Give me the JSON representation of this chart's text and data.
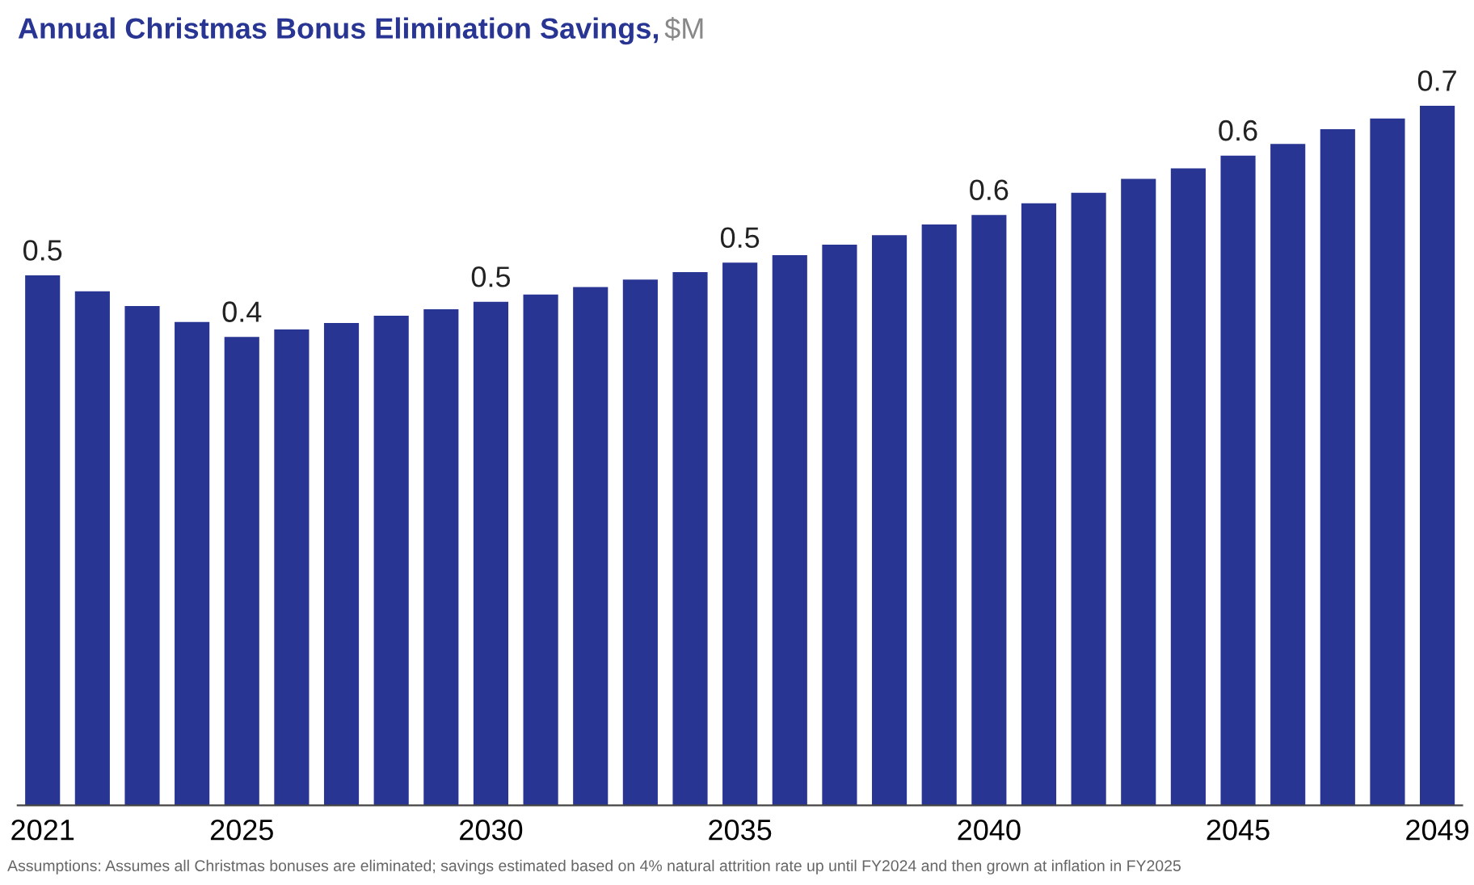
{
  "chart_data": {
    "type": "bar",
    "title": "Annual Christmas Bonus Elimination Savings,",
    "subtitle": "$M",
    "categories": [
      "2021",
      null,
      null,
      null,
      "2025",
      null,
      null,
      null,
      null,
      "2030",
      null,
      null,
      null,
      null,
      "2035",
      null,
      null,
      null,
      null,
      "2040",
      null,
      null,
      null,
      null,
      "2045",
      null,
      null,
      null,
      "2049"
    ],
    "values": [
      0.5,
      0.485,
      0.471,
      0.456,
      0.442,
      0.449,
      0.455,
      0.462,
      0.468,
      0.475,
      0.482,
      0.489,
      0.496,
      0.503,
      0.512,
      0.519,
      0.529,
      0.538,
      0.548,
      0.557,
      0.568,
      0.578,
      0.591,
      0.601,
      0.613,
      0.624,
      0.638,
      0.648,
      0.66
    ],
    "value_labels": [
      "0.5",
      null,
      null,
      null,
      "0.4",
      null,
      null,
      null,
      null,
      "0.5",
      null,
      null,
      null,
      null,
      "0.5",
      null,
      null,
      null,
      null,
      "0.6",
      null,
      null,
      null,
      null,
      "0.6",
      null,
      null,
      null,
      "0.7"
    ],
    "color": "#283593",
    "grid": false,
    "legend": false,
    "annotations": [
      "Assumptions: Assumes all Christmas bonuses are eliminated; savings estimated based on 4% natural attrition rate up until FY2024 and then grown at inflation in FY2025"
    ]
  }
}
